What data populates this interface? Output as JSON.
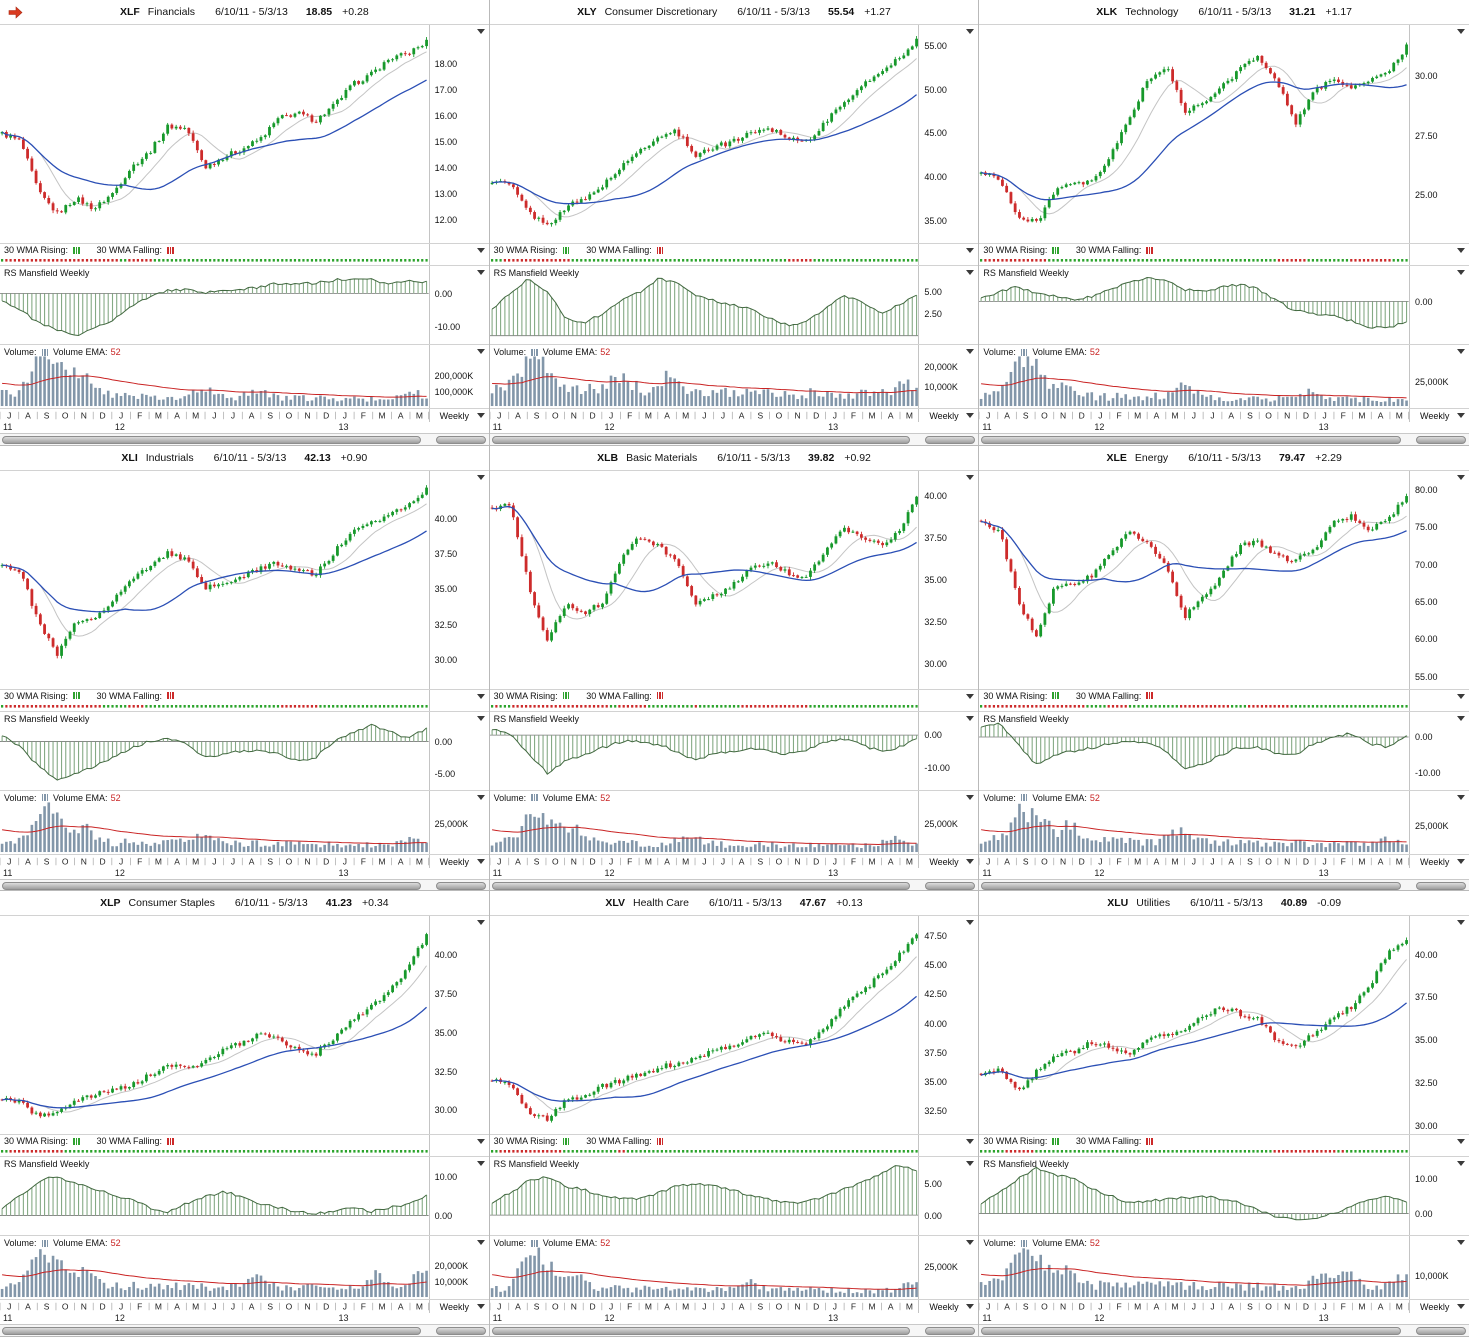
{
  "legend": {
    "wma_rising": "30 WMA Rising:",
    "wma_falling": "30 WMA Falling:",
    "rs_title": "RS Mansfield Weekly",
    "volume": "Volume:",
    "volume_ema": "Volume EMA:",
    "volume_ema_period": "52",
    "timeframe": "Weekly"
  },
  "time_axis": {
    "months": [
      "J",
      "A",
      "S",
      "O",
      "N",
      "D",
      "J",
      "F",
      "M",
      "A",
      "M",
      "J",
      "J",
      "A",
      "S",
      "O",
      "N",
      "D",
      "J",
      "F",
      "M",
      "A",
      "M"
    ],
    "years": [
      {
        "label": "11",
        "month_index": 0
      },
      {
        "label": "12",
        "month_index": 6
      },
      {
        "label": "13",
        "month_index": 18
      }
    ]
  },
  "panels": [
    {
      "type": "candlestick",
      "ticker": "XLF",
      "name": "Financials",
      "date_range": "6/10/11 - 5/3/13",
      "last": "18.85",
      "change": "+0.28",
      "price_axis": [
        {
          "label": "18.00",
          "v": 18
        },
        {
          "label": "17.00",
          "v": 17
        },
        {
          "label": "16.00",
          "v": 16
        },
        {
          "label": "15.00",
          "v": 15
        },
        {
          "label": "14.00",
          "v": 14
        },
        {
          "label": "13.00",
          "v": 13
        },
        {
          "label": "12.00",
          "v": 12
        }
      ],
      "price_range": [
        11.3,
        19.2
      ],
      "monthly_closes": [
        15.3,
        15.0,
        13.0,
        12.2,
        12.8,
        12.4,
        13.0,
        14.0,
        14.6,
        15.6,
        15.5,
        14.0,
        14.4,
        14.7,
        15.1,
        15.9,
        16.1,
        15.8,
        16.4,
        17.2,
        17.6,
        18.2,
        18.4,
        18.85
      ],
      "rs_axis": [
        {
          "label": "0.00",
          "v": 0
        },
        {
          "label": "-10.00",
          "v": -10
        }
      ],
      "rs_range": [
        -14,
        7
      ],
      "monthly_rs": [
        -2,
        -5,
        -9,
        -11,
        -13,
        -10,
        -8,
        -4,
        -1,
        1,
        1,
        0,
        1,
        1,
        2,
        3,
        3,
        3,
        4,
        4,
        4,
        3,
        4,
        3.5
      ],
      "vol_axis": [
        {
          "label": "200,000K",
          "v": 200000
        },
        {
          "label": "100,000K",
          "v": 100000
        }
      ],
      "vol_max": 340000,
      "vol_base": [
        80000,
        40000
      ],
      "vol_spikes": [
        [
          9,
          220000
        ],
        [
          13,
          150000
        ],
        [
          17,
          100000
        ],
        [
          21,
          80000
        ],
        [
          47,
          60000
        ],
        [
          60,
          40000
        ],
        [
          97,
          50000
        ]
      ],
      "seed": 1
    },
    {
      "type": "candlestick",
      "ticker": "XLY",
      "name": "Consumer Discretionary",
      "date_range": "6/10/11 - 5/3/13",
      "last": "55.54",
      "change": "+1.27",
      "price_axis": [
        {
          "label": "55.00",
          "v": 55
        },
        {
          "label": "50.00",
          "v": 50
        },
        {
          "label": "45.00",
          "v": 45
        },
        {
          "label": "40.00",
          "v": 40
        },
        {
          "label": "35.00",
          "v": 35
        }
      ],
      "price_range": [
        33.0,
        56.5
      ],
      "monthly_closes": [
        39.5,
        39.0,
        35.8,
        34.3,
        36.5,
        37.3,
        39.0,
        41.0,
        43.0,
        44.5,
        45.2,
        42.5,
        43.3,
        44.0,
        45.0,
        45.6,
        44.5,
        44.0,
        46.0,
        48.5,
        50.2,
        52.0,
        53.6,
        55.54
      ],
      "rs_axis": [
        {
          "label": "5.00",
          "v": 5
        },
        {
          "label": "2.50",
          "v": 2.5
        }
      ],
      "rs_range": [
        -0.5,
        7.5
      ],
      "monthly_rs": [
        3,
        5,
        6.5,
        5,
        2,
        1.5,
        2.5,
        4,
        5,
        6.5,
        6,
        4.5,
        4,
        3.5,
        3,
        2,
        1.2,
        1.5,
        3,
        4.5,
        4,
        2.5,
        3.5,
        4.5
      ],
      "vol_axis": [
        {
          "label": "20,000K",
          "v": 20000
        },
        {
          "label": "10,000K",
          "v": 10000
        }
      ],
      "vol_max": 26000,
      "vol_base": [
        8500,
        5500
      ],
      "vol_spikes": [
        [
          9,
          15000
        ],
        [
          13,
          10000
        ],
        [
          30,
          9000
        ],
        [
          42,
          7000
        ],
        [
          97,
          6000
        ]
      ],
      "seed": 2
    },
    {
      "type": "candlestick",
      "ticker": "XLK",
      "name": "Technology",
      "date_range": "6/10/11 - 5/3/13",
      "last": "31.21",
      "change": "+1.17",
      "price_axis": [
        {
          "label": "30.00",
          "v": 30
        },
        {
          "label": "27.50",
          "v": 27.5
        },
        {
          "label": "25.00",
          "v": 25
        }
      ],
      "price_range": [
        23.2,
        31.8
      ],
      "monthly_closes": [
        25.9,
        25.7,
        24.0,
        23.8,
        25.2,
        25.4,
        25.5,
        26.6,
        28.2,
        29.8,
        30.4,
        28.5,
        28.8,
        29.5,
        30.3,
        30.8,
        29.8,
        28.0,
        29.3,
        29.9,
        29.5,
        29.8,
        30.1,
        31.21
      ],
      "rs_axis": [
        {
          "label": "0.00",
          "v": 0
        }
      ],
      "rs_range": [
        -8,
        6.5
      ],
      "monthly_rs": [
        0.5,
        2,
        3,
        1.5,
        1,
        0.5,
        1,
        2.5,
        4,
        5,
        4.5,
        2.5,
        2,
        3,
        3.5,
        2.5,
        0,
        -2,
        -2.5,
        -3,
        -4,
        -5.5,
        -5.5,
        -4
      ],
      "vol_axis": [
        {
          "label": "25,000K",
          "v": 25000
        }
      ],
      "vol_max": 52000,
      "vol_base": [
        11000,
        6500
      ],
      "vol_spikes": [
        [
          9,
          38000
        ],
        [
          13,
          25000
        ],
        [
          20,
          12000
        ],
        [
          47,
          14000
        ],
        [
          78,
          8000
        ]
      ],
      "seed": 3
    },
    {
      "type": "candlestick",
      "ticker": "XLI",
      "name": "Industrials",
      "date_range": "6/10/11 - 5/3/13",
      "last": "42.13",
      "change": "+0.90",
      "price_axis": [
        {
          "label": "40.00",
          "v": 40
        },
        {
          "label": "37.50",
          "v": 37.5
        },
        {
          "label": "35.00",
          "v": 35
        },
        {
          "label": "32.50",
          "v": 32.5
        },
        {
          "label": "30.00",
          "v": 30
        }
      ],
      "price_range": [
        28.3,
        42.8
      ],
      "monthly_closes": [
        36.8,
        36.2,
        32.5,
        30.3,
        32.6,
        33.0,
        34.2,
        35.6,
        36.6,
        37.6,
        37.0,
        35.0,
        35.4,
        35.8,
        36.5,
        36.8,
        36.4,
        36.0,
        37.6,
        39.0,
        39.6,
        40.4,
        41.0,
        42.13
      ],
      "rs_axis": [
        {
          "label": "0.00",
          "v": 0
        },
        {
          "label": "-5.00",
          "v": -5
        }
      ],
      "rs_range": [
        -7,
        4
      ],
      "monthly_rs": [
        1,
        -1,
        -4,
        -6,
        -5,
        -4,
        -2.5,
        -1,
        0,
        0.5,
        -0.5,
        -2.5,
        -2,
        -1.5,
        -1.5,
        -2,
        -3,
        -2.5,
        0,
        1.5,
        2.5,
        1.5,
        0.5,
        2
      ],
      "vol_axis": [
        {
          "label": "25,000K",
          "v": 25000
        }
      ],
      "vol_max": 45000,
      "vol_base": [
        9500,
        5500
      ],
      "vol_spikes": [
        [
          9,
          28000
        ],
        [
          13,
          20000
        ],
        [
          20,
          12000
        ],
        [
          47,
          9000
        ],
        [
          97,
          7000
        ]
      ],
      "seed": 4
    },
    {
      "type": "candlestick",
      "ticker": "XLB",
      "name": "Basic Materials",
      "date_range": "6/10/11 - 5/3/13",
      "last": "39.82",
      "change": "+0.92",
      "price_axis": [
        {
          "label": "40.00",
          "v": 40
        },
        {
          "label": "37.50",
          "v": 37.5
        },
        {
          "label": "35.00",
          "v": 35
        },
        {
          "label": "32.50",
          "v": 32.5
        },
        {
          "label": "30.00",
          "v": 30
        }
      ],
      "price_range": [
        28.8,
        41.0
      ],
      "monthly_closes": [
        39.2,
        39.6,
        34.5,
        31.3,
        33.6,
        33.0,
        33.6,
        36.2,
        37.6,
        37.0,
        36.0,
        33.4,
        34.0,
        34.6,
        35.6,
        36.0,
        35.4,
        35.0,
        36.6,
        38.0,
        37.6,
        37.0,
        37.8,
        39.82
      ],
      "rs_axis": [
        {
          "label": "0.00",
          "v": 0
        },
        {
          "label": "-10.00",
          "v": -10
        }
      ],
      "rs_range": [
        -16,
        6
      ],
      "monthly_rs": [
        2,
        0,
        -6,
        -12,
        -8,
        -6,
        -4,
        -2,
        -2,
        -3,
        -5,
        -8,
        -6,
        -5,
        -4,
        -5,
        -6,
        -5,
        -2,
        -1,
        -3,
        -5,
        -4,
        -1
      ],
      "vol_axis": [
        {
          "label": "25,000K",
          "v": 25000
        }
      ],
      "vol_max": 45000,
      "vol_base": [
        8500,
        5000
      ],
      "vol_spikes": [
        [
          9,
          26000
        ],
        [
          14,
          18000
        ],
        [
          20,
          12000
        ],
        [
          47,
          8000
        ],
        [
          95,
          9000
        ]
      ],
      "seed": 5
    },
    {
      "type": "candlestick",
      "ticker": "XLE",
      "name": "Energy",
      "date_range": "6/10/11 - 5/3/13",
      "last": "79.47",
      "change": "+2.29",
      "price_axis": [
        {
          "label": "80.00",
          "v": 80
        },
        {
          "label": "75.00",
          "v": 75
        },
        {
          "label": "70.00",
          "v": 70
        },
        {
          "label": "65.00",
          "v": 65
        },
        {
          "label": "60.00",
          "v": 60
        },
        {
          "label": "55.00",
          "v": 55
        }
      ],
      "price_range": [
        54.0,
        81.5
      ],
      "monthly_closes": [
        75.5,
        74.5,
        65.0,
        60.0,
        67.0,
        67.5,
        68.5,
        71.5,
        74.5,
        73.0,
        70.0,
        63.0,
        65.5,
        68.5,
        72.5,
        73.0,
        71.0,
        70.5,
        72.0,
        75.5,
        76.5,
        74.5,
        76.0,
        79.47
      ],
      "rs_axis": [
        {
          "label": "0.00",
          "v": 0
        },
        {
          "label": "-10.00",
          "v": -10
        }
      ],
      "rs_range": [
        -14,
        6
      ],
      "monthly_rs": [
        3,
        4,
        -2,
        -8,
        -5,
        -4,
        -3,
        -2,
        -1,
        -2,
        -4,
        -9,
        -8,
        -5,
        -3,
        -3,
        -5,
        -5,
        -2,
        0,
        1,
        -2,
        -3,
        0.5
      ],
      "vol_axis": [
        {
          "label": "25,000K",
          "v": 25000
        }
      ],
      "vol_max": 48000,
      "vol_base": [
        11000,
        7000
      ],
      "vol_spikes": [
        [
          9,
          28000
        ],
        [
          14,
          20000
        ],
        [
          21,
          14000
        ],
        [
          47,
          12000
        ],
        [
          95,
          7000
        ]
      ],
      "seed": 6
    },
    {
      "type": "candlestick",
      "ticker": "XLP",
      "name": "Consumer Staples",
      "date_range": "6/10/11 - 5/3/13",
      "last": "41.23",
      "change": "+0.34",
      "price_axis": [
        {
          "label": "40.00",
          "v": 40
        },
        {
          "label": "37.50",
          "v": 37.5
        },
        {
          "label": "35.00",
          "v": 35
        },
        {
          "label": "32.50",
          "v": 32.5
        },
        {
          "label": "30.00",
          "v": 30
        }
      ],
      "price_range": [
        28.8,
        42.0
      ],
      "monthly_closes": [
        30.7,
        30.4,
        29.5,
        29.9,
        30.6,
        30.9,
        31.3,
        31.6,
        32.2,
        32.9,
        32.6,
        33.1,
        33.9,
        34.3,
        34.9,
        34.5,
        33.9,
        33.6,
        34.6,
        35.9,
        36.6,
        37.6,
        39.2,
        41.23
      ],
      "rs_axis": [
        {
          "label": "10.00",
          "v": 10
        },
        {
          "label": "0.00",
          "v": 0
        }
      ],
      "rs_range": [
        -4,
        14
      ],
      "monthly_rs": [
        2,
        5,
        9,
        10,
        8,
        7,
        5,
        4,
        2,
        1,
        3,
        5,
        6,
        5,
        3,
        2,
        1,
        0.5,
        1,
        2,
        1,
        2,
        3,
        5
      ],
      "vol_axis": [
        {
          "label": "20,000K",
          "v": 20000
        },
        {
          "label": "10,000K",
          "v": 10000
        }
      ],
      "vol_max": 33000,
      "vol_base": [
        7500,
        5200
      ],
      "vol_spikes": [
        [
          9,
          22000
        ],
        [
          13,
          15000
        ],
        [
          20,
          9000
        ],
        [
          60,
          7000
        ],
        [
          88,
          9000
        ],
        [
          99,
          12000
        ]
      ],
      "seed": 7
    },
    {
      "type": "candlestick",
      "ticker": "XLV",
      "name": "Health Care",
      "date_range": "6/10/11 - 5/3/13",
      "last": "47.67",
      "change": "+0.13",
      "price_axis": [
        {
          "label": "47.50",
          "v": 47.5
        },
        {
          "label": "45.00",
          "v": 45
        },
        {
          "label": "42.50",
          "v": 42.5
        },
        {
          "label": "40.00",
          "v": 40
        },
        {
          "label": "37.50",
          "v": 37.5
        },
        {
          "label": "35.00",
          "v": 35
        },
        {
          "label": "32.50",
          "v": 32.5
        }
      ],
      "price_range": [
        31.0,
        48.5
      ],
      "monthly_closes": [
        35.2,
        34.6,
        32.3,
        31.8,
        33.4,
        33.8,
        34.6,
        35.1,
        35.6,
        36.1,
        36.6,
        36.9,
        37.6,
        38.1,
        38.9,
        39.1,
        38.4,
        38.1,
        39.6,
        41.5,
        42.6,
        44.1,
        45.7,
        47.67
      ],
      "rs_axis": [
        {
          "label": "5.00",
          "v": 5
        },
        {
          "label": "0.00",
          "v": 0
        }
      ],
      "rs_range": [
        -2.5,
        8.5
      ],
      "monthly_rs": [
        2,
        3.5,
        5.5,
        6,
        4.5,
        4,
        3,
        2.5,
        2.5,
        3.5,
        4.5,
        5,
        4.5,
        4,
        3,
        2.5,
        2,
        2,
        3,
        4,
        5,
        6.5,
        8,
        7
      ],
      "vol_axis": [
        {
          "label": "25,000K",
          "v": 25000
        }
      ],
      "vol_max": 42000,
      "vol_base": [
        7500,
        5000
      ],
      "vol_spikes": [
        [
          9,
          28000
        ],
        [
          13,
          18000
        ],
        [
          20,
          10000
        ],
        [
          60,
          6000
        ],
        [
          99,
          9000
        ]
      ],
      "seed": 8
    },
    {
      "type": "candlestick",
      "ticker": "XLU",
      "name": "Utilities",
      "date_range": "6/10/11 - 5/3/13",
      "last": "40.89",
      "change": "-0.09",
      "price_axis": [
        {
          "label": "40.00",
          "v": 40
        },
        {
          "label": "37.50",
          "v": 37.5
        },
        {
          "label": "35.00",
          "v": 35
        },
        {
          "label": "32.50",
          "v": 32.5
        },
        {
          "label": "30.00",
          "v": 30
        }
      ],
      "price_range": [
        29.8,
        41.8
      ],
      "monthly_closes": [
        33.0,
        33.3,
        32.0,
        33.1,
        34.1,
        34.3,
        34.9,
        34.5,
        34.2,
        34.9,
        35.3,
        35.6,
        36.3,
        36.9,
        36.5,
        36.2,
        34.8,
        34.6,
        35.3,
        36.3,
        36.9,
        38.1,
        40.1,
        40.89
      ],
      "rs_axis": [
        {
          "label": "10.00",
          "v": 10
        },
        {
          "label": "0.00",
          "v": 0
        }
      ],
      "rs_range": [
        -5,
        15
      ],
      "monthly_rs": [
        3,
        6,
        10,
        13,
        11,
        10,
        7,
        5,
        3,
        3.5,
        4,
        4.5,
        5,
        4,
        3,
        1,
        -1,
        -2,
        -1.5,
        0,
        2,
        4,
        5,
        3
      ],
      "vol_axis": [
        {
          "label": "10,000K",
          "v": 10000
        }
      ],
      "vol_max": 24000,
      "vol_base": [
        6000,
        4200
      ],
      "vol_spikes": [
        [
          9,
          14000
        ],
        [
          14,
          10000
        ],
        [
          20,
          7000
        ],
        [
          80,
          6000
        ],
        [
          86,
          8000
        ],
        [
          99,
          6000
        ]
      ],
      "seed": 9
    }
  ]
}
